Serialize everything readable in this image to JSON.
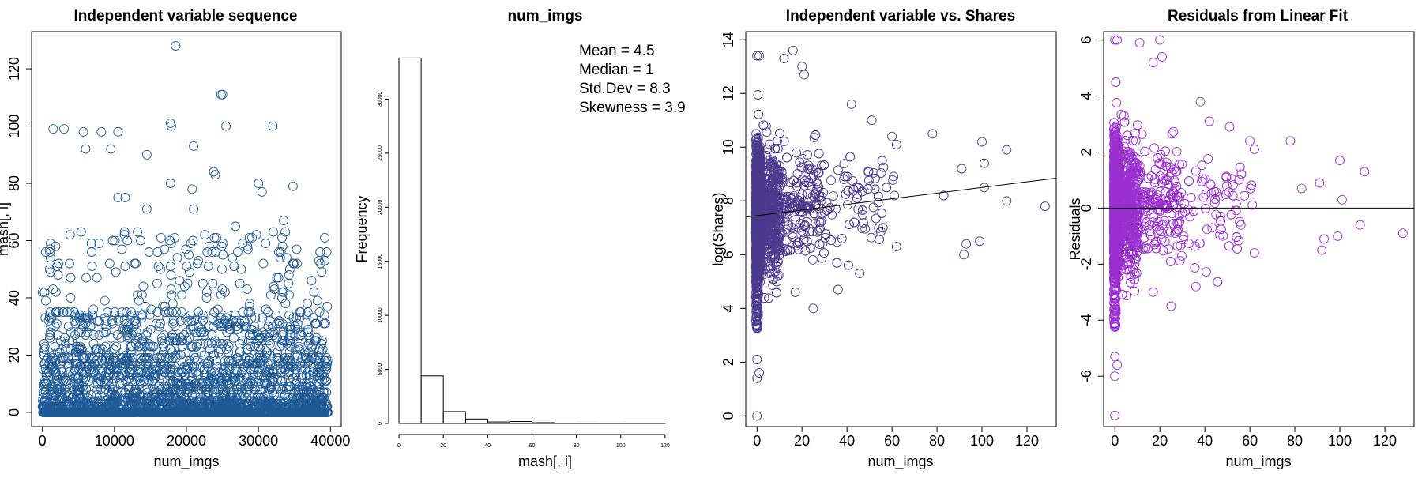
{
  "colors": {
    "panel1": "#1f5a96",
    "panel3": "#4b3a8c",
    "panel4": "#9b30d0"
  },
  "chart_data": [
    {
      "type": "scatter",
      "title": "Independent variable sequence",
      "xlabel": "num_imgs",
      "ylabel": "mash[, i]",
      "xlim": [
        -1500,
        41500
      ],
      "ylim": [
        -5,
        133
      ],
      "xticks": [
        "0",
        "10000",
        "20000",
        "30000",
        "40000"
      ],
      "yticks": [
        "0",
        "20",
        "40",
        "60",
        "80",
        "100",
        "120"
      ],
      "approx_points": 39644,
      "highlight_points": [
        {
          "x": 18500,
          "y": 128
        },
        {
          "x": 24800,
          "y": 111
        },
        {
          "x": 25000,
          "y": 111
        },
        {
          "x": 1500,
          "y": 99
        },
        {
          "x": 3000,
          "y": 99
        },
        {
          "x": 5700,
          "y": 98
        },
        {
          "x": 8200,
          "y": 98
        },
        {
          "x": 10500,
          "y": 98
        },
        {
          "x": 17800,
          "y": 101
        },
        {
          "x": 17900,
          "y": 100
        },
        {
          "x": 25500,
          "y": 100
        },
        {
          "x": 32000,
          "y": 100
        },
        {
          "x": 21000,
          "y": 93
        },
        {
          "x": 6000,
          "y": 92
        },
        {
          "x": 9500,
          "y": 92
        },
        {
          "x": 14500,
          "y": 90
        },
        {
          "x": 23800,
          "y": 84
        },
        {
          "x": 24000,
          "y": 83
        },
        {
          "x": 17800,
          "y": 80
        },
        {
          "x": 30000,
          "y": 80
        },
        {
          "x": 34800,
          "y": 79
        },
        {
          "x": 20800,
          "y": 78
        },
        {
          "x": 10500,
          "y": 75
        },
        {
          "x": 11500,
          "y": 75
        },
        {
          "x": 30500,
          "y": 77
        },
        {
          "x": 14500,
          "y": 71
        },
        {
          "x": 21000,
          "y": 71
        },
        {
          "x": 0,
          "y": 42
        },
        {
          "x": 300,
          "y": 42
        },
        {
          "x": 33500,
          "y": 67
        },
        {
          "x": 26800,
          "y": 65
        }
      ]
    },
    {
      "type": "bar",
      "title": "num_imgs",
      "xlabel": "mash[, i]",
      "ylabel": "Frequency",
      "bin_edges": [
        0,
        10,
        20,
        30,
        40,
        50,
        60,
        70,
        80,
        90,
        100,
        110,
        120,
        130
      ],
      "values": [
        33800,
        4400,
        1100,
        420,
        140,
        180,
        70,
        30,
        15,
        20,
        6,
        5,
        2
      ],
      "xlim": [
        0,
        130
      ],
      "ylim": [
        0,
        35000
      ],
      "xticks": [
        "0",
        "20",
        "40",
        "60",
        "80",
        "100",
        "120"
      ],
      "yticks": [
        "0",
        "5000",
        "10000",
        "15000",
        "20000",
        "25000",
        "30000"
      ],
      "annotations": [
        "Mean = 4.5",
        "Median = 1",
        "Std.Dev = 8.3",
        "Skewness = 3.9"
      ]
    },
    {
      "type": "scatter",
      "title": "Independent variable vs. Shares",
      "xlabel": "num_imgs",
      "ylabel": "log(Shares)",
      "xlim": [
        -5,
        133
      ],
      "ylim": [
        -0.4,
        14.3
      ],
      "xticks": [
        "0",
        "20",
        "40",
        "60",
        "80",
        "100",
        "120"
      ],
      "yticks": [
        "0",
        "2",
        "4",
        "6",
        "8",
        "10",
        "12",
        "14"
      ],
      "approx_points": 39644,
      "fit_line": {
        "intercept": 7.45,
        "slope": 0.0105
      },
      "highlight_points": [
        {
          "x": 0,
          "y": 0
        },
        {
          "x": 0,
          "y": 1.4
        },
        {
          "x": 1,
          "y": 1.6
        },
        {
          "x": 0,
          "y": 2.1
        },
        {
          "x": 0,
          "y": 13.4
        },
        {
          "x": 1,
          "y": 13.4
        },
        {
          "x": 16,
          "y": 13.6
        },
        {
          "x": 12,
          "y": 13.3
        },
        {
          "x": 20,
          "y": 13.0
        },
        {
          "x": 21,
          "y": 12.7
        },
        {
          "x": 36,
          "y": 4.7
        },
        {
          "x": 42,
          "y": 11.6
        },
        {
          "x": 51,
          "y": 11.0
        },
        {
          "x": 60,
          "y": 10.4
        },
        {
          "x": 62,
          "y": 10.1
        },
        {
          "x": 78,
          "y": 10.5
        },
        {
          "x": 100,
          "y": 10.2
        },
        {
          "x": 111,
          "y": 9.9
        },
        {
          "x": 128,
          "y": 7.8
        },
        {
          "x": 92,
          "y": 6.0
        },
        {
          "x": 93,
          "y": 6.4
        },
        {
          "x": 99,
          "y": 6.5
        },
        {
          "x": 111,
          "y": 8.0
        },
        {
          "x": 101,
          "y": 9.4
        },
        {
          "x": 101,
          "y": 8.5
        },
        {
          "x": 83,
          "y": 8.2
        },
        {
          "x": 91,
          "y": 9.2
        },
        {
          "x": 62,
          "y": 6.3
        },
        {
          "x": 56,
          "y": 7.0
        },
        {
          "x": 25,
          "y": 4.0
        },
        {
          "x": 17,
          "y": 4.6
        }
      ]
    },
    {
      "type": "scatter",
      "title": "Residuals from Linear Fit",
      "xlabel": "num_imgs",
      "ylabel": "Residuals",
      "xlim": [
        -5,
        133
      ],
      "ylim": [
        -7.8,
        6.3
      ],
      "xticks": [
        "0",
        "20",
        "40",
        "60",
        "80",
        "100",
        "120"
      ],
      "yticks": [
        "-6",
        "-4",
        "-2",
        "0",
        "2",
        "4",
        "6"
      ],
      "approx_points": 39644,
      "fit_line": {
        "intercept": 0,
        "slope": 0
      },
      "highlight_points": [
        {
          "x": 0,
          "y": 6.0
        },
        {
          "x": 1,
          "y": 6.0
        },
        {
          "x": 11,
          "y": 5.9
        },
        {
          "x": 20,
          "y": 6.0
        },
        {
          "x": 21,
          "y": 5.4
        },
        {
          "x": 17,
          "y": 5.2
        },
        {
          "x": 0,
          "y": -7.4
        },
        {
          "x": 0,
          "y": -6.0
        },
        {
          "x": 1,
          "y": -5.6
        },
        {
          "x": 0,
          "y": -5.3
        },
        {
          "x": 38,
          "y": 3.8
        },
        {
          "x": 42,
          "y": 3.1
        },
        {
          "x": 51,
          "y": 2.9
        },
        {
          "x": 60,
          "y": 2.4
        },
        {
          "x": 62,
          "y": 2.1
        },
        {
          "x": 100,
          "y": 1.7
        },
        {
          "x": 111,
          "y": 1.3
        },
        {
          "x": 128,
          "y": -0.9
        },
        {
          "x": 92,
          "y": -1.5
        },
        {
          "x": 93,
          "y": -1.1
        },
        {
          "x": 99,
          "y": -1.0
        },
        {
          "x": 101,
          "y": 0.3
        },
        {
          "x": 36,
          "y": -2.8
        },
        {
          "x": 25,
          "y": -3.5
        },
        {
          "x": 17,
          "y": -3.0
        },
        {
          "x": 56,
          "y": -0.6
        },
        {
          "x": 78,
          "y": 2.4
        },
        {
          "x": 83,
          "y": 0.7
        },
        {
          "x": 91,
          "y": 0.9
        },
        {
          "x": 109,
          "y": -0.6
        },
        {
          "x": 62,
          "y": -1.6
        }
      ]
    }
  ]
}
